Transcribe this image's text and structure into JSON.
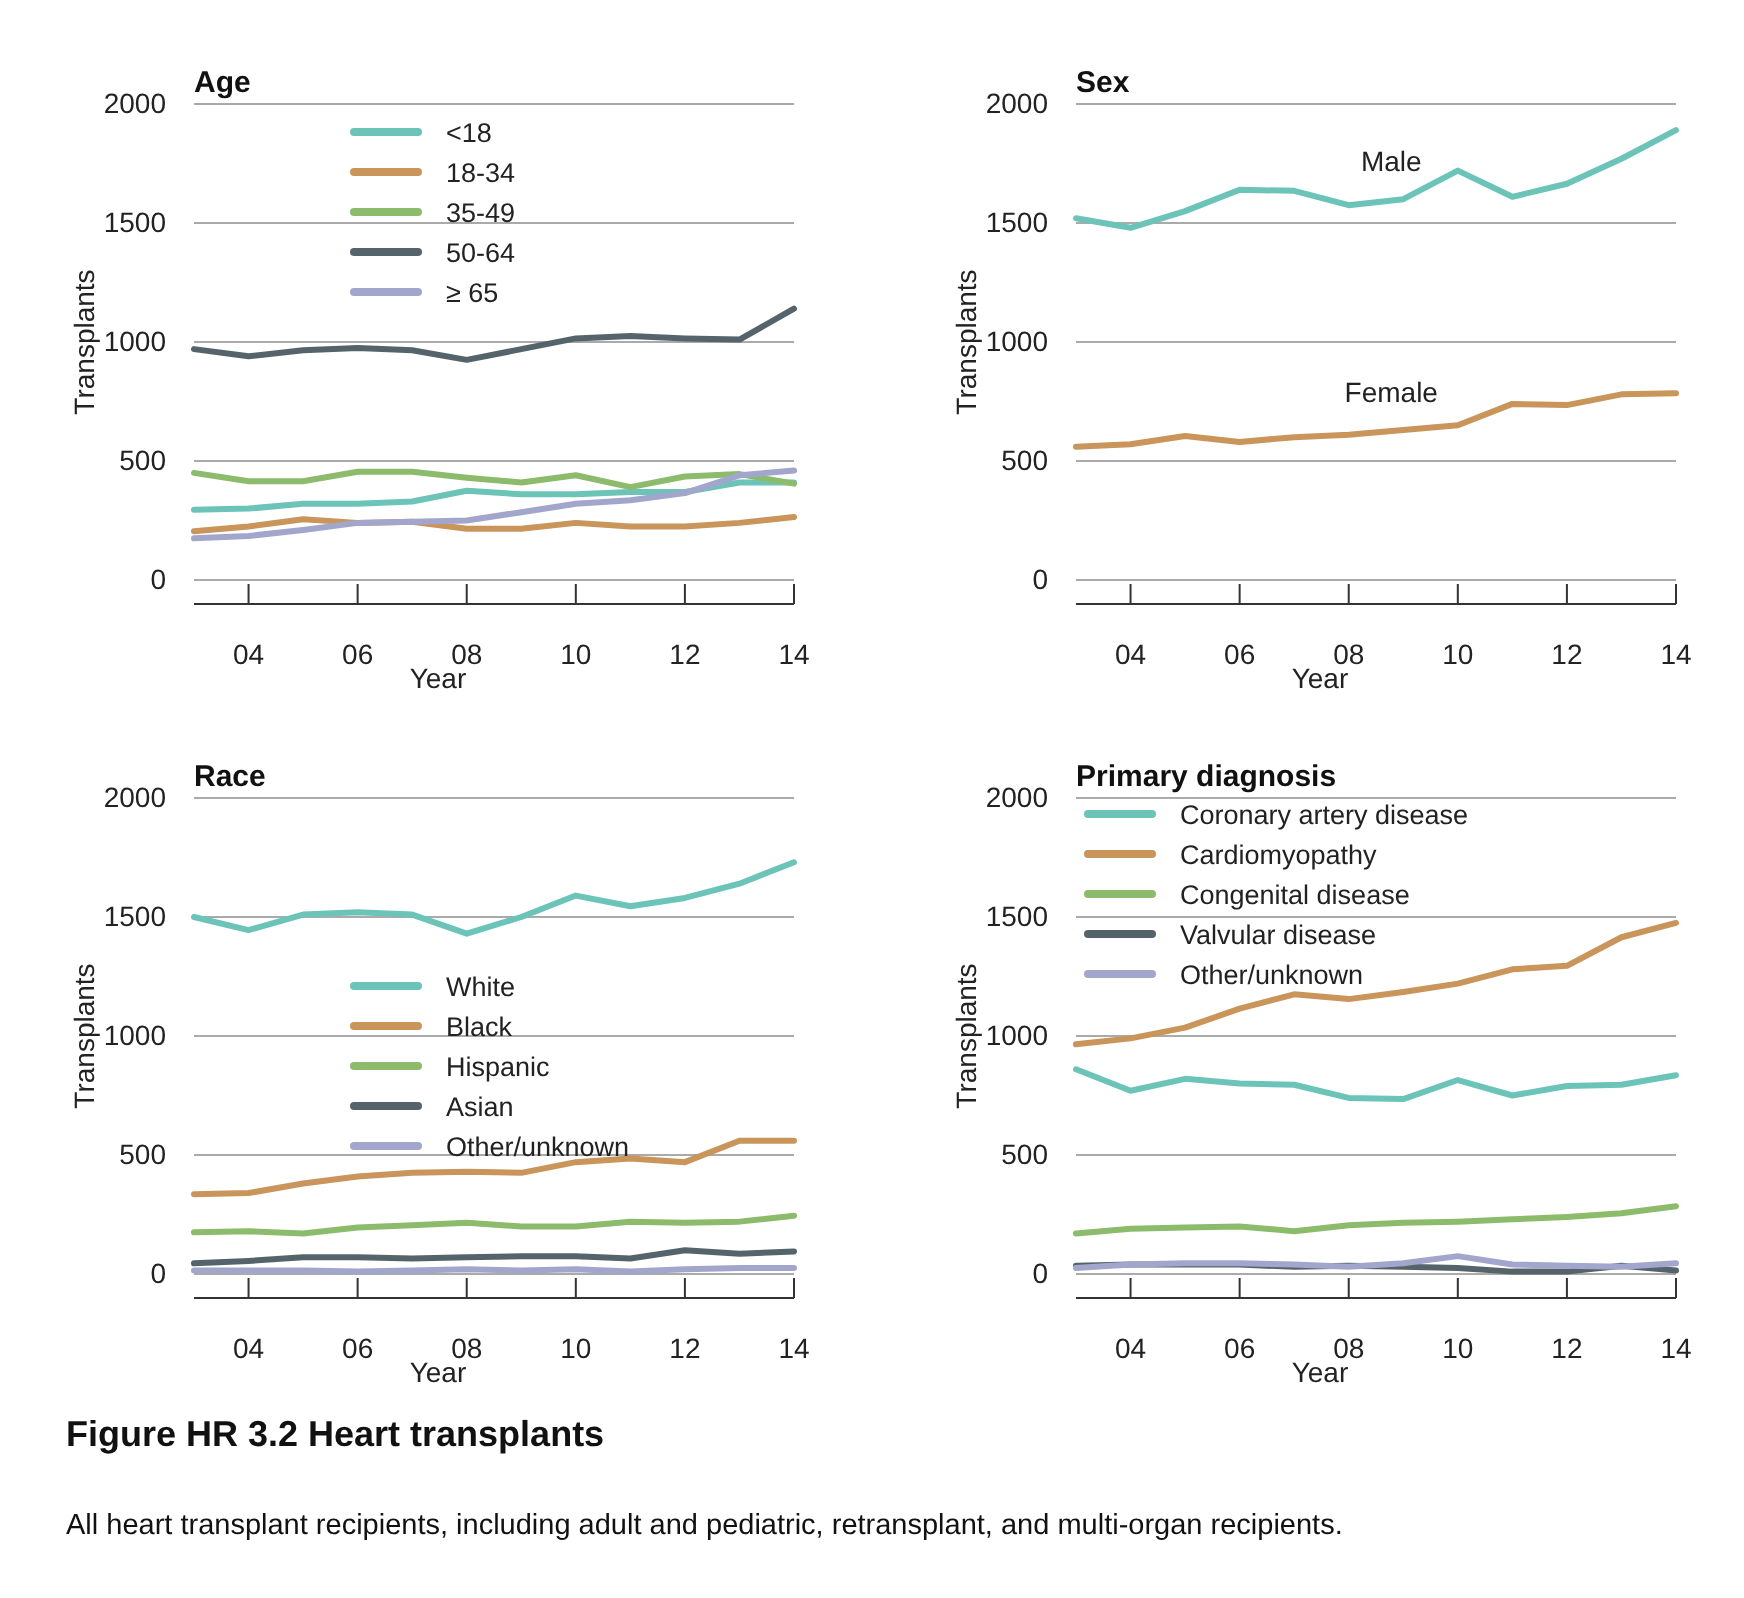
{
  "chart_data": [
    {
      "type": "line",
      "title": "Age",
      "xlabel": "Year",
      "ylabel": "Transplants",
      "x": [
        2003,
        2004,
        2005,
        2006,
        2007,
        2008,
        2009,
        2010,
        2011,
        2012,
        2013,
        2014
      ],
      "xlim": [
        2003,
        2014
      ],
      "xticks": [
        {
          "value": 2004,
          "label": "04"
        },
        {
          "value": 2006,
          "label": "06"
        },
        {
          "value": 2008,
          "label": "08"
        },
        {
          "value": 2010,
          "label": "10"
        },
        {
          "value": 2012,
          "label": "12"
        },
        {
          "value": 2014,
          "label": "14"
        }
      ],
      "ylim": [
        0,
        2000
      ],
      "yticks": [
        0,
        500,
        1000,
        1500,
        2000
      ],
      "grid": "y",
      "legend": "top",
      "series": [
        {
          "name": "<18",
          "color": "#6cc4b8",
          "values": [
            295,
            300,
            320,
            320,
            330,
            375,
            360,
            360,
            370,
            370,
            410,
            410
          ]
        },
        {
          "name": "18-34",
          "color": "#c9955a",
          "values": [
            205,
            225,
            255,
            240,
            245,
            215,
            215,
            240,
            225,
            225,
            240,
            265
          ]
        },
        {
          "name": "35-49",
          "color": "#8dbb6c",
          "values": [
            450,
            415,
            415,
            455,
            455,
            430,
            410,
            440,
            390,
            435,
            445,
            405
          ]
        },
        {
          "name": "50-64",
          "color": "#55646a",
          "values": [
            970,
            940,
            965,
            975,
            965,
            925,
            970,
            1015,
            1025,
            1015,
            1010,
            1140
          ]
        },
        {
          "name": "≥ 65",
          "color": "#a3a6cc",
          "values": [
            175,
            185,
            210,
            240,
            245,
            250,
            285,
            320,
            335,
            365,
            440,
            460
          ]
        }
      ]
    },
    {
      "type": "line",
      "title": "Sex",
      "xlabel": "Year",
      "ylabel": "Transplants",
      "x": [
        2003,
        2004,
        2005,
        2006,
        2007,
        2008,
        2009,
        2010,
        2011,
        2012,
        2013,
        2014
      ],
      "xlim": [
        2003,
        2014
      ],
      "xticks": [
        {
          "value": 2004,
          "label": "04"
        },
        {
          "value": 2006,
          "label": "06"
        },
        {
          "value": 2008,
          "label": "08"
        },
        {
          "value": 2010,
          "label": "10"
        },
        {
          "value": 2012,
          "label": "12"
        },
        {
          "value": 2014,
          "label": "14"
        }
      ],
      "ylim": [
        0,
        2000
      ],
      "yticks": [
        0,
        500,
        1000,
        1500,
        2000
      ],
      "grid": "y",
      "series": [
        {
          "name": "Male",
          "color": "#6cc4b8",
          "values": [
            1520,
            1480,
            1550,
            1640,
            1635,
            1575,
            1600,
            1720,
            1610,
            1665,
            1770,
            1890
          ]
        },
        {
          "name": "Female",
          "color": "#c9955a",
          "values": [
            560,
            570,
            605,
            580,
            600,
            610,
            630,
            650,
            740,
            735,
            780,
            785
          ]
        }
      ]
    },
    {
      "type": "line",
      "title": "Race",
      "xlabel": "Year",
      "ylabel": "Transplants",
      "x": [
        2003,
        2004,
        2005,
        2006,
        2007,
        2008,
        2009,
        2010,
        2011,
        2012,
        2013,
        2014
      ],
      "xlim": [
        2003,
        2014
      ],
      "xticks": [
        {
          "value": 2004,
          "label": "04"
        },
        {
          "value": 2006,
          "label": "06"
        },
        {
          "value": 2008,
          "label": "08"
        },
        {
          "value": 2010,
          "label": "10"
        },
        {
          "value": 2012,
          "label": "12"
        },
        {
          "value": 2014,
          "label": "14"
        }
      ],
      "ylim": [
        0,
        2000
      ],
      "yticks": [
        0,
        500,
        1000,
        1500,
        2000
      ],
      "grid": "y",
      "legend": "center",
      "series": [
        {
          "name": "White",
          "color": "#6cc4b8",
          "values": [
            1500,
            1445,
            1510,
            1520,
            1510,
            1430,
            1500,
            1590,
            1545,
            1580,
            1640,
            1730
          ]
        },
        {
          "name": "Black",
          "color": "#c9955a",
          "values": [
            335,
            340,
            380,
            410,
            425,
            430,
            425,
            470,
            485,
            470,
            560,
            560
          ]
        },
        {
          "name": "Hispanic",
          "color": "#8dbb6c",
          "values": [
            175,
            180,
            170,
            195,
            205,
            215,
            200,
            200,
            220,
            215,
            220,
            245
          ]
        },
        {
          "name": "Asian",
          "color": "#55646a",
          "values": [
            45,
            55,
            70,
            70,
            65,
            70,
            75,
            75,
            65,
            100,
            85,
            95
          ]
        },
        {
          "name": "Other/unknown",
          "color": "#a3a6cc",
          "values": [
            15,
            15,
            15,
            10,
            15,
            20,
            15,
            20,
            10,
            20,
            25,
            25
          ]
        }
      ]
    },
    {
      "type": "line",
      "title": "Primary diagnosis",
      "xlabel": "Year",
      "ylabel": "Transplants",
      "x": [
        2003,
        2004,
        2005,
        2006,
        2007,
        2008,
        2009,
        2010,
        2011,
        2012,
        2013,
        2014
      ],
      "xlim": [
        2003,
        2014
      ],
      "xticks": [
        {
          "value": 2004,
          "label": "04"
        },
        {
          "value": 2006,
          "label": "06"
        },
        {
          "value": 2008,
          "label": "08"
        },
        {
          "value": 2010,
          "label": "10"
        },
        {
          "value": 2012,
          "label": "12"
        },
        {
          "value": 2014,
          "label": "14"
        }
      ],
      "ylim": [
        0,
        2000
      ],
      "yticks": [
        0,
        500,
        1000,
        1500,
        2000
      ],
      "grid": "y",
      "legend": "top left",
      "series": [
        {
          "name": "Coronary artery disease",
          "color": "#6cc4b8",
          "values": [
            860,
            770,
            820,
            800,
            795,
            740,
            735,
            815,
            750,
            790,
            795,
            835
          ]
        },
        {
          "name": "Cardiomyopathy",
          "color": "#c9955a",
          "values": [
            965,
            990,
            1035,
            1115,
            1175,
            1155,
            1185,
            1220,
            1280,
            1295,
            1415,
            1475
          ]
        },
        {
          "name": "Congenital disease",
          "color": "#8dbb6c",
          "values": [
            170,
            190,
            195,
            200,
            180,
            205,
            215,
            220,
            230,
            240,
            255,
            285
          ]
        },
        {
          "name": "Valvular disease",
          "color": "#55646a",
          "values": [
            35,
            40,
            40,
            40,
            30,
            35,
            30,
            25,
            10,
            10,
            35,
            15
          ]
        },
        {
          "name": "Other/unknown",
          "color": "#a3a6cc",
          "values": [
            25,
            40,
            45,
            45,
            40,
            30,
            45,
            75,
            40,
            35,
            30,
            45
          ]
        }
      ],
      "annotations": [
        "Figure HR 3.2 Heart transplants",
        "All heart transplant recipients, including adult and pediatric, retransplant, and multi-organ recipients."
      ]
    }
  ]
}
